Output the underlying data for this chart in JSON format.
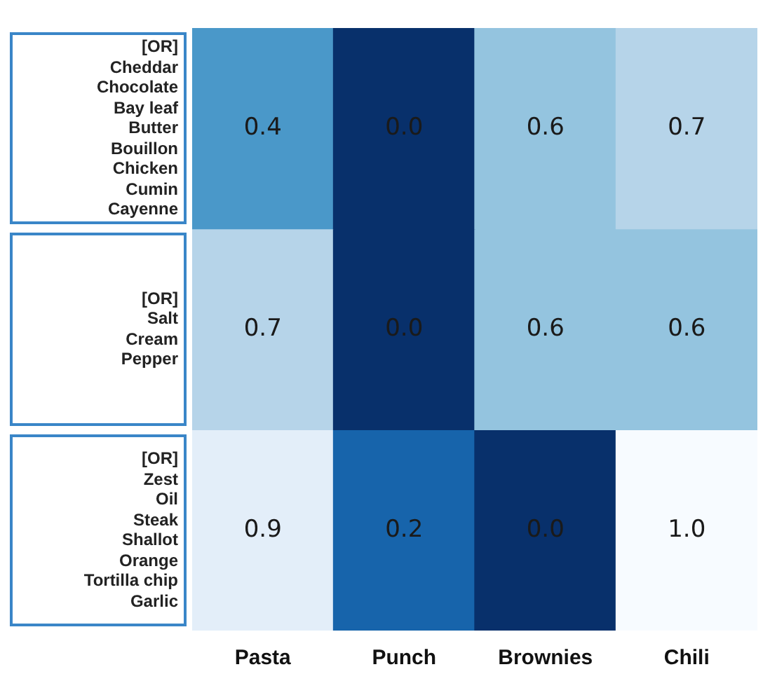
{
  "chart_data": {
    "type": "heatmap",
    "categories": [
      "Pasta",
      "Punch",
      "Brownies",
      "Chili"
    ],
    "y_categories": [
      "[OR]\nCheddar\nChocolate\nBay leaf\nButter\nBouillon\nChicken\nCumin\nCayenne",
      "[OR]\nSalt\nCream\nPepper",
      "[OR]\nZest\nOil\nSteak\nShallot\nOrange\nTortilla chip\nGarlic"
    ],
    "cells": [
      [
        0.4,
        0.0,
        0.6,
        0.7
      ],
      [
        0.7,
        0.0,
        0.6,
        0.6
      ],
      [
        0.9,
        0.2,
        0.0,
        1.0
      ]
    ],
    "cell_labels": [
      [
        "0.4",
        "0.0",
        "0.6",
        "0.7"
      ],
      [
        "0.7",
        "0.0",
        "0.6",
        "0.6"
      ],
      [
        "0.9",
        "0.2",
        "0.0",
        "1.0"
      ]
    ]
  }
}
